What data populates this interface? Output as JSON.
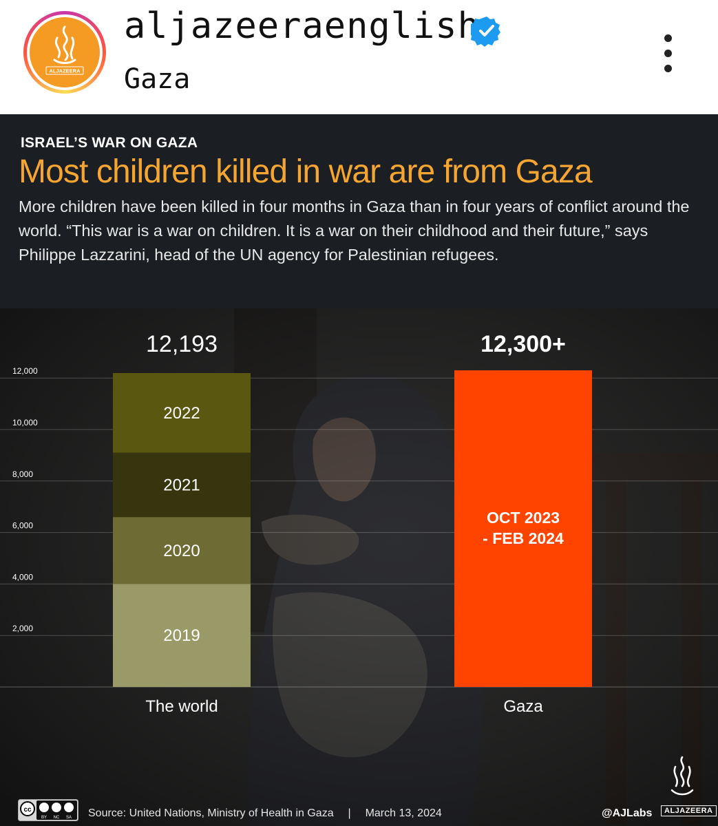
{
  "post": {
    "username": "aljazeeraenglish",
    "location": "Gaza",
    "avatar_logo_text": "ALJAZEERA",
    "verified_icon": "verified-badge-icon",
    "menu_icon": "more-options-icon"
  },
  "infographic": {
    "kicker": "ISRAEL’S WAR ON GAZA",
    "headline": "Most children killed in war are from Gaza",
    "deck": "More children have been killed in four months in Gaza than in four years of conflict around the world. “This war is a war on children. It is a war on their childhood and their future,” says Philippe Lazzarini, head of the UN agency for Palestinian refugees.",
    "source": "Source: United Nations, Ministry of Health in Gaza",
    "date": "March 13, 2024",
    "separator": "|",
    "handle": "@AJLabs",
    "brand": "ALJAZEERA",
    "license_icon": "creative-commons-by-nc-sa-icon",
    "license_labels": [
      "BY",
      "NC",
      "SA"
    ]
  },
  "colors": {
    "headline": "#f5a532",
    "gaza_bar": "#ff4400",
    "year_2019": "#9a9a68",
    "year_2020": "#6e6c34",
    "year_2021": "#36350e",
    "year_2022": "#5a5810",
    "background": "#1b1e22"
  },
  "chart_data": {
    "type": "bar",
    "stacked": true,
    "categories": [
      "The world",
      "Gaza"
    ],
    "totals": [
      "12,193",
      "12,300+"
    ],
    "yticks": [
      2000,
      4000,
      6000,
      8000,
      10000,
      12000
    ],
    "ytick_labels": [
      "2,000",
      "4,000",
      "6,000",
      "8,000",
      "10,000",
      "12,000"
    ],
    "ylim": [
      0,
      13500
    ],
    "grid": true,
    "segments": [
      {
        "bar": "The world",
        "label": "2019",
        "value": 4000,
        "color": "#9a9a68"
      },
      {
        "bar": "The world",
        "label": "2020",
        "value": 2600,
        "color": "#6e6c34"
      },
      {
        "bar": "The world",
        "label": "2021",
        "value": 2500,
        "color": "#36350e"
      },
      {
        "bar": "The world",
        "label": "2022",
        "value": 3093,
        "color": "#5a5810"
      },
      {
        "bar": "Gaza",
        "label": "OCT 2023 - FEB 2024",
        "label_lines": [
          "OCT 2023",
          "- FEB 2024"
        ],
        "value": 12300,
        "color": "#ff4400"
      }
    ]
  }
}
